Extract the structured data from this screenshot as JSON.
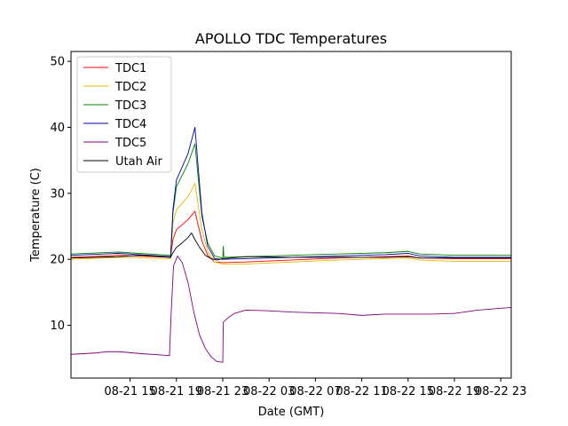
{
  "chart_data": {
    "type": "line",
    "title": "APOLLO TDC Temperatures",
    "xlabel": "Date (GMT)",
    "ylabel": "Temperature (C)",
    "x_unit": "hours since 08-21 12:00 GMT",
    "xlim": [
      -2.1,
      35.9
    ],
    "ylim": [
      2.0,
      51.5
    ],
    "x_ticks": [
      {
        "x": 3,
        "label": "08-21 15"
      },
      {
        "x": 7,
        "label": "08-21 19"
      },
      {
        "x": 11,
        "label": "08-21 23"
      },
      {
        "x": 15,
        "label": "08-22 03"
      },
      {
        "x": 19,
        "label": "08-22 07"
      },
      {
        "x": 23,
        "label": "08-22 11"
      },
      {
        "x": 27,
        "label": "08-22 15"
      },
      {
        "x": 31,
        "label": "08-22 19"
      },
      {
        "x": 35,
        "label": "08-22 23"
      }
    ],
    "y_ticks": [
      {
        "y": 10,
        "label": "10"
      },
      {
        "y": 20,
        "label": "20"
      },
      {
        "y": 30,
        "label": "30"
      },
      {
        "y": 40,
        "label": "40"
      },
      {
        "y": 50,
        "label": "50"
      }
    ],
    "legend_position": "upper-left",
    "series": [
      {
        "name": "TDC1",
        "color": "#ff0000",
        "x": [
          -2.1,
          2,
          6.5,
          6.7,
          7,
          8,
          8.6,
          8.9,
          9.2,
          9.7,
          10.3,
          11,
          13,
          17,
          21,
          25,
          27,
          28,
          31,
          35.9
        ],
        "y": [
          20.3,
          20.6,
          20.3,
          23.0,
          24.5,
          26.0,
          27.3,
          25.0,
          22.8,
          20.6,
          19.6,
          19.5,
          19.6,
          19.9,
          20.2,
          20.4,
          20.5,
          20.2,
          20.1,
          20.1
        ]
      },
      {
        "name": "TDC2",
        "color": "#e6b800",
        "x": [
          -2.1,
          2,
          6.5,
          6.7,
          7,
          8,
          8.6,
          8.9,
          9.2,
          9.7,
          10.3,
          11,
          13,
          17,
          21,
          25,
          27,
          28,
          31,
          35.9
        ],
        "y": [
          20.0,
          20.3,
          20.1,
          25.5,
          27.5,
          29.5,
          31.5,
          28.0,
          24.5,
          21.2,
          19.6,
          19.3,
          19.3,
          19.6,
          19.9,
          20.1,
          20.2,
          19.9,
          19.7,
          19.7
        ]
      },
      {
        "name": "TDC3",
        "color": "#008000",
        "x": [
          -2.1,
          2,
          6.5,
          6.7,
          7,
          8,
          8.6,
          8.9,
          9.2,
          9.7,
          10.3,
          11,
          11.05,
          11.1,
          13,
          17,
          21,
          25,
          27,
          28,
          31,
          35.9
        ],
        "y": [
          20.8,
          21.1,
          20.6,
          27.0,
          31.0,
          34.5,
          37.5,
          32.0,
          26.5,
          22.5,
          20.5,
          20.2,
          22.0,
          20.3,
          20.4,
          20.6,
          20.8,
          21.0,
          21.2,
          20.8,
          20.6,
          20.6
        ]
      },
      {
        "name": "TDC4",
        "color": "#0000a0",
        "x": [
          -2.1,
          2,
          6.5,
          6.7,
          7,
          8,
          8.6,
          8.9,
          9.2,
          9.7,
          10.3,
          11,
          13,
          17,
          21,
          25,
          27,
          28,
          31,
          35.9
        ],
        "y": [
          20.6,
          20.9,
          20.4,
          27.5,
          32.0,
          36.0,
          40.0,
          33.5,
          27.0,
          22.0,
          20.1,
          20.0,
          20.1,
          20.3,
          20.5,
          20.7,
          20.9,
          20.5,
          20.3,
          20.3
        ]
      },
      {
        "name": "TDC5",
        "color": "#800080",
        "x": [
          -2.1,
          0,
          1,
          2,
          4,
          6.4,
          6.55,
          6.75,
          7.1,
          7.5,
          8,
          8.5,
          9,
          9.5,
          10,
          10.5,
          11,
          11.05,
          11.5,
          12,
          13,
          15,
          17,
          19,
          21,
          23,
          25,
          27,
          29,
          31,
          33,
          35.9
        ],
        "y": [
          5.6,
          5.8,
          6.0,
          6.0,
          5.7,
          5.4,
          12.0,
          19.0,
          20.5,
          19.5,
          16.5,
          12.0,
          8.5,
          6.5,
          5.2,
          4.5,
          4.4,
          10.5,
          11.2,
          11.8,
          12.3,
          12.2,
          12.0,
          11.9,
          11.8,
          11.5,
          11.7,
          11.7,
          11.7,
          11.8,
          12.3,
          12.7
        ]
      },
      {
        "name": "Utah Air",
        "color": "#000000",
        "x": [
          -2.1,
          2,
          4,
          6.5,
          6.7,
          7,
          7.5,
          8,
          8.3,
          8.6,
          9,
          9.5,
          10,
          10.5,
          11,
          13,
          17,
          21,
          25,
          27,
          28,
          31,
          35.9
        ],
        "y": [
          20.2,
          20.4,
          20.6,
          20.3,
          21.0,
          21.8,
          22.5,
          23.3,
          24.0,
          23.0,
          21.8,
          20.6,
          20.1,
          19.9,
          20.1,
          20.4,
          20.3,
          20.3,
          20.3,
          20.4,
          20.2,
          20.2,
          20.2
        ]
      }
    ]
  }
}
